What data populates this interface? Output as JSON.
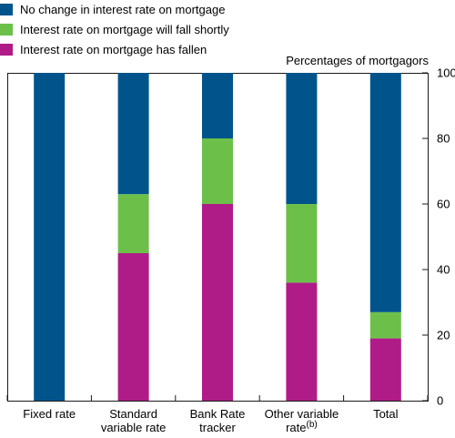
{
  "chart_data": {
    "type": "bar",
    "stacked": true,
    "unit_label": "Percentages of mortgagors",
    "categories": [
      {
        "lines": [
          "Fixed rate"
        ],
        "superscript": ""
      },
      {
        "lines": [
          "Standard",
          "variable rate"
        ],
        "superscript": ""
      },
      {
        "lines": [
          "Bank Rate",
          "tracker"
        ],
        "superscript": ""
      },
      {
        "lines": [
          "Other variable",
          "rate"
        ],
        "superscript": "(b)"
      },
      {
        "lines": [
          "Total"
        ],
        "superscript": ""
      }
    ],
    "series": [
      {
        "name": "Interest rate on mortgage has fallen",
        "color": "#b01c87",
        "values": [
          0,
          45,
          60,
          36,
          19
        ]
      },
      {
        "name": "Interest rate on mortgage will fall shortly",
        "color": "#6cc04a",
        "values": [
          0,
          18,
          20,
          24,
          8
        ]
      },
      {
        "name": "No change in interest rate on mortgage",
        "color": "#00548b",
        "values": [
          100,
          37,
          20,
          40,
          73
        ]
      }
    ],
    "legend_order": [
      2,
      1,
      0
    ],
    "legend_position": "top-left",
    "ylim": [
      0,
      100
    ],
    "yticks": [
      0,
      20,
      40,
      60,
      80,
      100
    ],
    "yaxis_side": "right",
    "grid": false
  }
}
